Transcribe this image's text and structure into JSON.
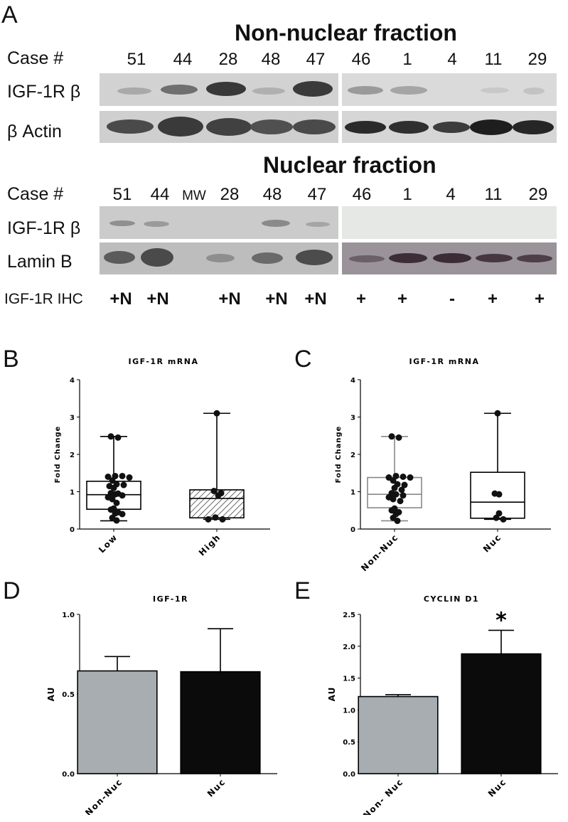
{
  "panelA": {
    "letter": "A",
    "nonnuclear": {
      "title": "Non-nuclear fraction",
      "case_label": "Case #",
      "cases": [
        "51",
        "44",
        "28",
        "48",
        "47",
        "46",
        "1",
        "4",
        "11",
        "29"
      ],
      "rows": [
        "IGF-1R β",
        "β Actin"
      ]
    },
    "nuclear": {
      "title": "Nuclear fraction",
      "case_label": "Case #",
      "cases": [
        "51",
        "44",
        "MW",
        "28",
        "48",
        "47",
        "46",
        "1",
        "4",
        "11",
        "29"
      ],
      "rows": [
        "IGF-1R β",
        "Lamin B"
      ]
    },
    "ihc": {
      "label": "IGF-1R IHC",
      "values": [
        "+N",
        "+N",
        "",
        "+N",
        "+N",
        "+N",
        "+",
        "+",
        "-",
        "+",
        "+"
      ]
    }
  },
  "chart_data": [
    {
      "panel": "B",
      "type": "box",
      "title": "IGF-1R mRNA",
      "ylabel": "Fold Change",
      "ylim": [
        0,
        4
      ],
      "yticks": [
        "0",
        "1",
        "2",
        "3",
        "4"
      ],
      "categories": [
        "Low",
        "High"
      ],
      "boxes": [
        {
          "category": "Low",
          "min": 0.22,
          "q1": 0.53,
          "median": 0.92,
          "q3": 1.28,
          "max": 2.48,
          "fill": "none"
        },
        {
          "category": "High",
          "min": 0.26,
          "q1": 0.3,
          "median": 0.82,
          "q3": 1.05,
          "max": 3.1,
          "fill": "hatched"
        }
      ],
      "points": [
        {
          "category": "Low",
          "values": [
            2.48,
            2.45,
            1.42,
            1.42,
            1.4,
            1.38,
            1.3,
            1.2,
            1.18,
            1.15,
            1.1,
            0.96,
            0.95,
            0.93,
            0.9,
            0.85,
            0.8,
            0.7,
            0.55,
            0.52,
            0.45,
            0.42,
            0.4,
            0.3,
            0.23
          ]
        },
        {
          "category": "High",
          "values": [
            3.1,
            1.02,
            0.96,
            0.9,
            0.31,
            0.26,
            0.26
          ]
        }
      ]
    },
    {
      "panel": "C",
      "type": "box",
      "title": "IGF-1R mRNA",
      "ylabel": "Fold Change",
      "ylim": [
        0,
        4
      ],
      "yticks": [
        "0",
        "1",
        "2",
        "3",
        "4"
      ],
      "categories": [
        "Non-Nuc",
        "Nuc"
      ],
      "boxes": [
        {
          "category": "Non-Nuc",
          "min": 0.22,
          "q1": 0.57,
          "median": 0.93,
          "q3": 1.38,
          "max": 2.48,
          "color": "#888888"
        },
        {
          "category": "Nuc",
          "min": 0.26,
          "q1": 0.29,
          "median": 0.72,
          "q3": 1.52,
          "max": 3.1,
          "color": "#000000"
        }
      ],
      "points": [
        {
          "category": "Non-Nuc",
          "values": [
            2.48,
            2.45,
            1.42,
            1.4,
            1.38,
            1.38,
            1.3,
            1.2,
            1.18,
            1.1,
            1.05,
            0.96,
            0.93,
            0.9,
            0.85,
            0.8,
            0.75,
            0.55,
            0.5,
            0.45,
            0.4,
            0.3,
            0.22
          ]
        },
        {
          "category": "Nuc",
          "values": [
            3.1,
            0.95,
            0.93,
            0.42,
            0.3,
            0.26
          ]
        }
      ]
    },
    {
      "panel": "D",
      "type": "bar",
      "title": "IGF-1R",
      "ylabel": "AU",
      "ylim": [
        0,
        1.0
      ],
      "yticks": [
        "0.0",
        "0.5",
        "1.0"
      ],
      "categories": [
        "Non-Nuc",
        "Nuc"
      ],
      "values": [
        0.645,
        0.64
      ],
      "errors": [
        0.09,
        0.27
      ],
      "colors": [
        "#a7adb0",
        "#0b0b0b"
      ]
    },
    {
      "panel": "E",
      "type": "bar",
      "title": "CYCLIN D1",
      "ylabel": "AU",
      "ylim": [
        0,
        2.5
      ],
      "yticks": [
        "0.0",
        "0.5",
        "1.0",
        "1.5",
        "2.0",
        "2.5"
      ],
      "categories": [
        "Non- Nuc",
        "Nuc"
      ],
      "values": [
        1.21,
        1.88
      ],
      "errors": [
        0.03,
        0.37
      ],
      "colors": [
        "#a7adb0",
        "#0b0b0b"
      ],
      "annotation": "*"
    }
  ]
}
